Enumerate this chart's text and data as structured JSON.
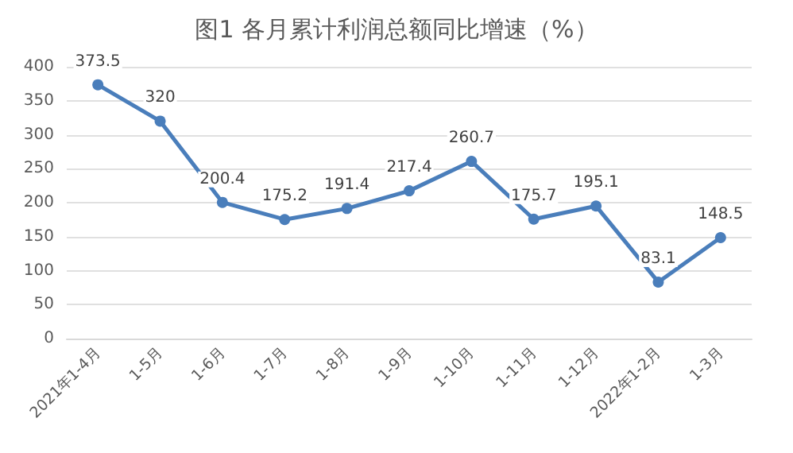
{
  "chart_data": {
    "type": "line",
    "title": "图1 各月累计利润总额同比增速（%）",
    "categories": [
      "2021年1-4月",
      "1-5月",
      "1-6月",
      "1-7月",
      "1-8月",
      "1-9月",
      "1-10月",
      "1-11月",
      "1-12月",
      "2022年1-2月",
      "1-3月"
    ],
    "series": [
      {
        "color": "#4a7ebb",
        "values": [
          373.5,
          320,
          200.4,
          175.2,
          191.4,
          217.4,
          260.7,
          175.7,
          195.1,
          83.1,
          148.5
        ]
      }
    ],
    "ylim": [
      0,
      400
    ],
    "yticks": [
      0,
      50,
      100,
      150,
      200,
      250,
      300,
      350,
      400
    ],
    "grid": "y",
    "marker": "circle",
    "line_style": "solid",
    "data_labels": true
  }
}
